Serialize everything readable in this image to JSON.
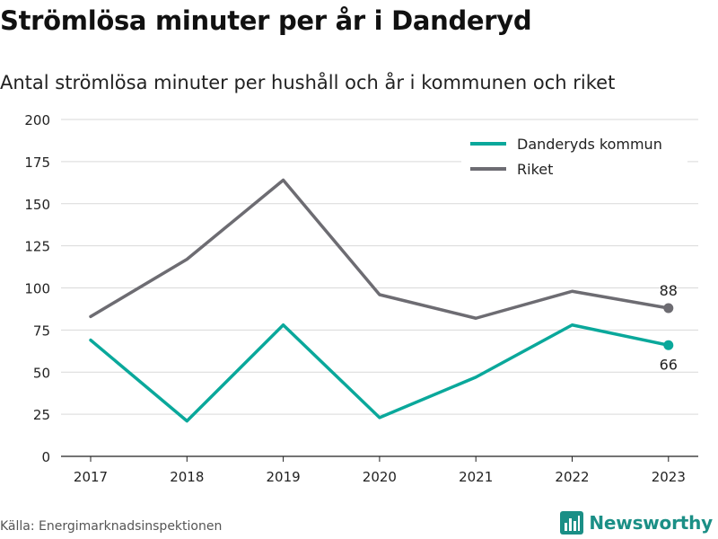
{
  "title": "Strömlösa minuter per år i Danderyd",
  "subtitle": "Antal strömlösa minuter per hushåll och år i kommunen och riket",
  "source": "Källa: Energimarknadsinspektionen",
  "brand": {
    "name": "Newsworthy",
    "icon": "bar-chart-logo-icon",
    "color": "#1b8f86"
  },
  "chart_data": {
    "type": "line",
    "categories": [
      "2017",
      "2018",
      "2019",
      "2020",
      "2021",
      "2022",
      "2023"
    ],
    "ylim": [
      0,
      200
    ],
    "yticks": [
      "0",
      "25",
      "50",
      "75",
      "100",
      "125",
      "150",
      "175",
      "200"
    ],
    "grid": true,
    "legend_position": "top-right",
    "series": [
      {
        "name": "Danderyds kommun",
        "color": "#0aa89b",
        "values": [
          69,
          21,
          78,
          23,
          47,
          78,
          66
        ],
        "end_label": "66",
        "end_label_pos": "below"
      },
      {
        "name": "Riket",
        "color": "#6d6c72",
        "values": [
          83,
          117,
          164,
          96,
          82,
          98,
          88
        ],
        "end_label": "88",
        "end_label_pos": "above"
      }
    ]
  }
}
